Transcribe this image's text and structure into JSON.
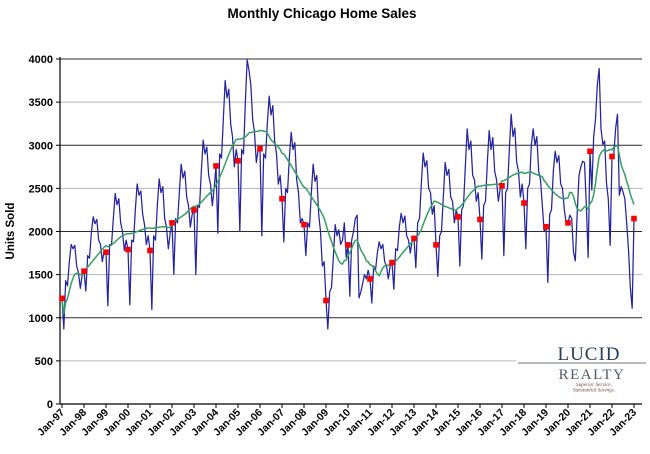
{
  "title": "Monthly Chicago Home Sales",
  "chart_data": {
    "type": "line",
    "title": "Monthly Chicago Home Sales",
    "xlabel": "",
    "ylabel": "Units Sold",
    "ylim": [
      0,
      4000
    ],
    "y_ticks": [
      0,
      500,
      1000,
      1500,
      2000,
      2500,
      3000,
      3500,
      4000
    ],
    "x_tick_labels": [
      "Jan-97",
      "Jan-98",
      "Jan-99",
      "Jan-00",
      "Jan-01",
      "Jan-02",
      "Jan-03",
      "Jan-04",
      "Jan-05",
      "Jan-06",
      "Jan-07",
      "Jan-08",
      "Jan-09",
      "Jan-10",
      "Jan-11",
      "Jan-12",
      "Jan-13",
      "Jan-14",
      "Jan-15",
      "Jan-16",
      "Jan-17",
      "Jan-18",
      "Jan-19",
      "Jan-20",
      "Jan-21",
      "Jan-22",
      "Jan-23"
    ],
    "frequency": "monthly",
    "x_start": "Jan-1997",
    "x_end": "Jan-2023",
    "grid": "horizontal-only",
    "legend": "none",
    "series": [
      {
        "name": "Monthly home sales (units sold)",
        "style": "jagged monthly line",
        "values": [
          1225,
          870,
          1430,
          1370,
          1650,
          1850,
          1800,
          1840,
          1600,
          1520,
          1340,
          1500,
          1540,
          1310,
          1720,
          1690,
          1980,
          2170,
          2090,
          2140,
          1900,
          1850,
          1650,
          1780,
          1760,
          1140,
          1850,
          1840,
          2150,
          2440,
          2310,
          2380,
          2100,
          2000,
          1780,
          1900,
          1790,
          1150,
          1900,
          1880,
          2250,
          2550,
          2420,
          2470,
          2200,
          2080,
          1850,
          1950,
          1780,
          1095,
          1950,
          1900,
          2300,
          2610,
          2450,
          2520,
          2150,
          2050,
          1800,
          1980,
          2100,
          1505,
          2150,
          2100,
          2450,
          2780,
          2620,
          2700,
          2400,
          2300,
          2050,
          2200,
          2250,
          1500,
          2300,
          2280,
          2700,
          3060,
          2900,
          2980,
          2650,
          2550,
          2300,
          2500,
          2760,
          1980,
          2900,
          2850,
          3300,
          3750,
          3550,
          3650,
          3250,
          3100,
          2750,
          2950,
          2820,
          2000,
          2950,
          2900,
          3500,
          3990,
          3870,
          3700,
          3300,
          3150,
          2800,
          2950,
          2960,
          1950,
          2900,
          2850,
          3250,
          3570,
          3350,
          3460,
          3050,
          2900,
          2550,
          2650,
          2380,
          1880,
          2500,
          2450,
          2850,
          3150,
          2950,
          3030,
          2600,
          2450,
          2100,
          2150,
          2080,
          1720,
          2100,
          2050,
          2450,
          2780,
          2580,
          2650,
          2200,
          2000,
          1600,
          1650,
          1200,
          870,
          1300,
          1350,
          1700,
          2080,
          1950,
          2020,
          1850,
          1900,
          2100,
          1700,
          1845,
          1250,
          1900,
          2000,
          2150,
          2190,
          1230,
          1300,
          1400,
          1500,
          1450,
          1550,
          1450,
          1170,
          1600,
          1550,
          1750,
          1880,
          1800,
          1850,
          1650,
          1600,
          1450,
          1600,
          1640,
          1330,
          1800,
          1780,
          2050,
          2210,
          2100,
          2180,
          1950,
          1900,
          1750,
          1900,
          1920,
          1580,
          2100,
          2150,
          2550,
          2910,
          2750,
          2820,
          2500,
          2450,
          2200,
          2300,
          1845,
          1480,
          1950,
          2000,
          2400,
          2800,
          2650,
          2720,
          2400,
          2350,
          2100,
          2250,
          2170,
          1600,
          2250,
          2300,
          2750,
          3190,
          2950,
          3050,
          2650,
          2600,
          2350,
          2450,
          2140,
          1680,
          2300,
          2350,
          2800,
          3170,
          2950,
          3090,
          2700,
          2600,
          2350,
          2500,
          2530,
          1720,
          2450,
          2500,
          2950,
          3360,
          3100,
          3200,
          2800,
          2700,
          2400,
          2550,
          2330,
          1800,
          2500,
          2550,
          3000,
          3190,
          3000,
          3100,
          2700,
          2600,
          2300,
          2000,
          2055,
          1410,
          2200,
          2250,
          2700,
          2930,
          2800,
          2880,
          2550,
          2500,
          2250,
          2100,
          2100,
          2190,
          2150,
          1760,
          1660,
          2200,
          2650,
          2750,
          2815,
          2800,
          2300,
          1700,
          2930,
          2480,
          3100,
          3300,
          3700,
          3890,
          3190,
          3010,
          3050,
          2560,
          2370,
          1840,
          2870,
          2900,
          3200,
          3360,
          2420,
          2520,
          2460,
          2380,
          2100,
          1790,
          1350,
          1110,
          2150
        ]
      },
      {
        "name": "12-month moving average",
        "style": "smooth trend line",
        "derived": "trailing 12-month average of monthly home sales"
      },
      {
        "name": "January sales markers",
        "style": "red square markers at each January",
        "x": [
          "Jan-97",
          "Jan-98",
          "Jan-99",
          "Jan-00",
          "Jan-01",
          "Jan-02",
          "Jan-03",
          "Jan-04",
          "Jan-05",
          "Jan-06",
          "Jan-07",
          "Jan-08",
          "Jan-09",
          "Jan-10",
          "Jan-11",
          "Jan-12",
          "Jan-13",
          "Jan-14",
          "Jan-15",
          "Jan-16",
          "Jan-17",
          "Jan-18",
          "Jan-19",
          "Jan-20",
          "Jan-21",
          "Jan-22",
          "Jan-23"
        ],
        "values": [
          1225,
          1540,
          1760,
          1790,
          1780,
          2100,
          2250,
          2760,
          2820,
          2960,
          2380,
          2080,
          1200,
          1845,
          1450,
          1640,
          1920,
          1845,
          2170,
          2140,
          2530,
          2330,
          2055,
          2100,
          2930,
          2870,
          2150
        ]
      }
    ]
  },
  "logo": {
    "name_top": "LUCID",
    "name_bottom": "REALTY",
    "tagline_line1": "Superior Service.",
    "tagline_line2": "Substantial Savings."
  },
  "colors": {
    "monthly_line": "#2323a0",
    "moving_average_line": "#33a05f",
    "january_marker": "#ff0000",
    "grid_major": "#2b2b2b",
    "grid_minor": "#b2b7bc",
    "axis": "#000000",
    "title_text": "#000000",
    "logo_name_top": "#253c5e",
    "logo_name_bottom": "#4e5a68",
    "logo_rule": "#8c9196",
    "logo_tagline": "#7a4a3a"
  }
}
